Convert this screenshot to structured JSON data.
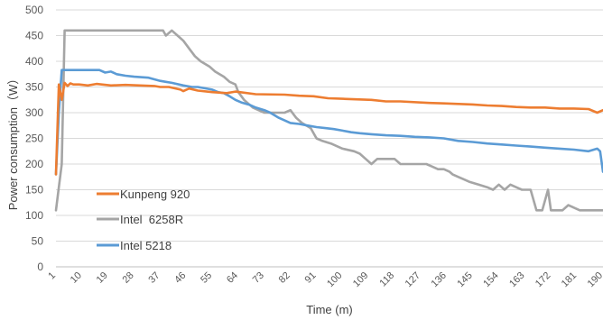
{
  "chart_data": {
    "type": "line",
    "xlabel": "Time (m)",
    "ylabel": "Power consumption（W）",
    "ylim": [
      0,
      500
    ],
    "xlim": [
      1,
      190
    ],
    "y_ticks": [
      0,
      50,
      100,
      150,
      200,
      250,
      300,
      350,
      400,
      450,
      500
    ],
    "x_ticks": [
      1,
      10,
      19,
      28,
      37,
      46,
      55,
      64,
      73,
      82,
      91,
      100,
      109,
      118,
      127,
      136,
      145,
      154,
      163,
      172,
      181,
      190
    ],
    "grid": "horizontal",
    "legend_position": "bottom-left",
    "series": [
      {
        "name": "Kunpeng 920",
        "color": "#ED7D31",
        "x": [
          1,
          2,
          3,
          4,
          5,
          6,
          7,
          9,
          12,
          15,
          20,
          25,
          30,
          35,
          37,
          40,
          44,
          45,
          47,
          50,
          55,
          60,
          63,
          70,
          80,
          85,
          90,
          95,
          100,
          110,
          115,
          120,
          130,
          135,
          140,
          145,
          150,
          155,
          160,
          165,
          170,
          175,
          180,
          185,
          188,
          190
        ],
        "y": [
          180,
          355,
          325,
          358,
          352,
          357,
          355,
          355,
          353,
          356,
          353,
          354,
          353,
          352,
          350,
          350,
          345,
          342,
          347,
          343,
          340,
          338,
          341,
          336,
          335,
          333,
          332,
          328,
          327,
          325,
          322,
          322,
          319,
          318,
          317,
          316,
          314,
          313,
          311,
          310,
          310,
          308,
          308,
          307,
          300,
          305
        ]
      },
      {
        "name": "Intel  6258R",
        "color": "#A5A5A5",
        "x": [
          1,
          3,
          4,
          38,
          39,
          41,
          43,
          45,
          47,
          49,
          51,
          54,
          56,
          59,
          61,
          63,
          64,
          66,
          69,
          71,
          73,
          76,
          80,
          82,
          84,
          86,
          89,
          91,
          93,
          96,
          100,
          104,
          106,
          108,
          110,
          112,
          115,
          118,
          120,
          123,
          125,
          127,
          129,
          131,
          133,
          135,
          137,
          138,
          140,
          142,
          144,
          147,
          150,
          152,
          154,
          156,
          158,
          160,
          162,
          165,
          167,
          169,
          171,
          172,
          174,
          176,
          178,
          180,
          182,
          185,
          190
        ],
        "y": [
          110,
          200,
          460,
          460,
          450,
          460,
          450,
          440,
          425,
          410,
          400,
          390,
          380,
          370,
          360,
          355,
          340,
          325,
          310,
          305,
          300,
          300,
          300,
          305,
          290,
          280,
          270,
          250,
          245,
          240,
          230,
          225,
          220,
          210,
          200,
          210,
          210,
          210,
          200,
          200,
          200,
          200,
          200,
          195,
          190,
          190,
          185,
          180,
          175,
          170,
          165,
          160,
          155,
          150,
          160,
          150,
          160,
          155,
          150,
          150,
          110,
          110,
          150,
          110,
          110,
          110,
          120,
          115,
          110,
          110,
          110
        ]
      },
      {
        "name": "Intel 5218",
        "color": "#5B9BD5",
        "x": [
          1,
          2,
          3,
          14,
          16,
          18,
          20,
          22,
          25,
          28,
          33,
          35,
          37,
          39,
          41,
          45,
          48,
          50,
          55,
          57,
          59,
          61,
          63,
          65,
          68,
          70,
          73,
          75,
          78,
          80,
          82,
          85,
          88,
          91,
          94,
          97,
          100,
          103,
          106,
          110,
          115,
          120,
          125,
          130,
          135,
          140,
          145,
          150,
          155,
          160,
          165,
          170,
          175,
          180,
          185,
          188,
          189,
          190
        ],
        "y": [
          180,
          300,
          383,
          383,
          383,
          378,
          380,
          375,
          372,
          370,
          368,
          365,
          362,
          360,
          358,
          353,
          350,
          350,
          345,
          340,
          338,
          332,
          325,
          320,
          315,
          310,
          305,
          300,
          290,
          285,
          280,
          278,
          275,
          272,
          270,
          268,
          265,
          262,
          260,
          258,
          256,
          255,
          253,
          252,
          250,
          245,
          243,
          240,
          238,
          236,
          234,
          232,
          230,
          228,
          225,
          230,
          225,
          185
        ]
      }
    ]
  }
}
